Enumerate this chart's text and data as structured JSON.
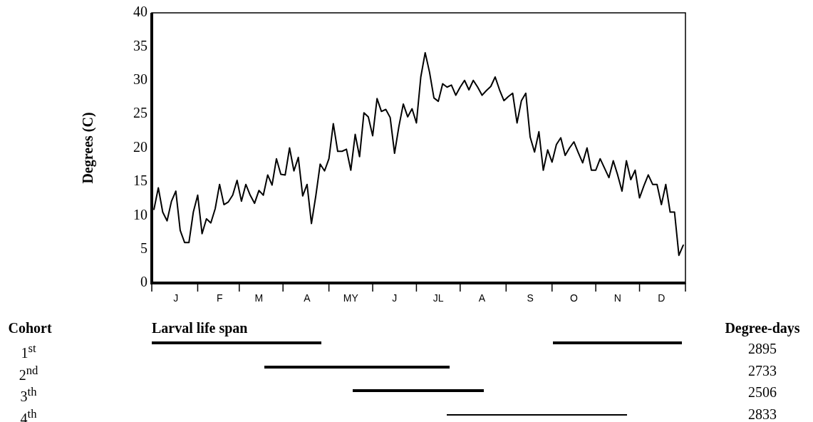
{
  "chart_data": [
    {
      "type": "line",
      "ylabel": "Degrees (C)",
      "color": "#000000",
      "marker": "none",
      "line_style": "solid",
      "grid": false,
      "legend": false,
      "categories": [
        null,
        null,
        null,
        null,
        null,
        "J",
        null,
        null,
        null,
        null,
        null,
        null,
        null,
        null,
        null,
        "F",
        null,
        null,
        null,
        null,
        null,
        null,
        null,
        null,
        "M",
        null,
        null,
        null,
        null,
        null,
        null,
        null,
        null,
        null,
        null,
        "A",
        null,
        null,
        null,
        null,
        null,
        null,
        null,
        null,
        null,
        "MY",
        null,
        null,
        null,
        null,
        null,
        null,
        null,
        null,
        null,
        "J",
        null,
        null,
        null,
        null,
        null,
        null,
        null,
        null,
        null,
        "JL",
        null,
        null,
        null,
        null,
        null,
        null,
        null,
        null,
        null,
        "A",
        null,
        null,
        null,
        null,
        null,
        null,
        null,
        null,
        null,
        null,
        "S",
        null,
        null,
        null,
        null,
        null,
        null,
        null,
        null,
        null,
        "O",
        null,
        null,
        null,
        null,
        null,
        null,
        null,
        null,
        null,
        "N",
        null,
        null,
        null,
        null,
        null,
        null,
        null,
        null,
        null,
        "D",
        null,
        null,
        null,
        null,
        null
      ],
      "ylim": [
        0,
        40
      ],
      "yticks": [
        0,
        5,
        10,
        15,
        20,
        25,
        30,
        35,
        40
      ],
      "values": [
        10.9,
        14.1,
        10.5,
        9.2,
        12.1,
        13.6,
        7.8,
        6.0,
        6.0,
        10.5,
        13.0,
        7.3,
        9.5,
        8.9,
        11.0,
        14.6,
        11.6,
        12.0,
        13.0,
        15.2,
        12.1,
        14.6,
        13.0,
        11.8,
        13.7,
        13.0,
        16.0,
        14.5,
        18.4,
        16.1,
        16.0,
        20.0,
        16.6,
        18.6,
        12.9,
        14.6,
        8.8,
        12.9,
        17.6,
        16.6,
        18.4,
        23.6,
        19.5,
        19.5,
        19.8,
        16.7,
        22.0,
        18.7,
        25.2,
        24.6,
        21.8,
        27.3,
        25.4,
        25.7,
        24.5,
        19.2,
        23.2,
        26.5,
        24.6,
        25.8,
        23.7,
        30.5,
        34.1,
        31.2,
        27.4,
        26.9,
        29.5,
        29.0,
        29.3,
        27.8,
        29.0,
        30.0,
        28.6,
        30.0,
        29.0,
        27.8,
        28.5,
        29.1,
        30.5,
        28.6,
        27.0,
        27.6,
        28.1,
        23.7,
        27.0,
        28.1,
        21.6,
        19.4,
        22.4,
        16.7,
        19.7,
        17.9,
        20.5,
        21.5,
        18.9,
        20.0,
        20.9,
        19.3,
        17.8,
        20.0,
        16.7,
        16.7,
        18.4,
        17.0,
        15.6,
        18.1,
        16.0,
        13.6,
        18.1,
        15.3,
        16.7,
        12.6,
        14.4,
        16.0,
        14.6,
        14.6,
        11.6,
        14.6,
        10.5,
        10.5,
        4.1,
        5.6
      ]
    },
    {
      "type": "other",
      "title": "Larval life span",
      "ylabel": "Cohort",
      "y2label": "Degree-days",
      "data_labels": true,
      "categories": [
        "1$^{st}$",
        "2$^{nd}$",
        "3$^{th}$",
        "4$^{th}$"
      ],
      "values": [
        2895,
        2733,
        2506,
        2833
      ]
    }
  ]
}
